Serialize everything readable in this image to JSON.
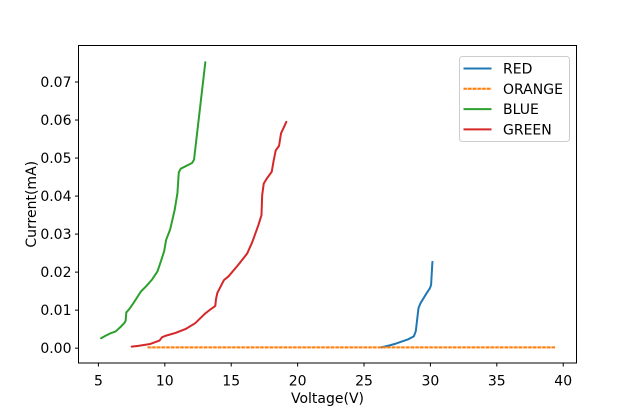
{
  "chart_data": {
    "type": "line",
    "title": "",
    "xlabel": "Voltage(V)",
    "ylabel": "Current(mA)",
    "xlim": [
      3.5,
      41.0
    ],
    "ylim": [
      -0.0039,
      0.0796
    ],
    "x_ticks": [
      5,
      10,
      15,
      20,
      25,
      30,
      35,
      40
    ],
    "x_tick_labels": [
      "5",
      "10",
      "15",
      "20",
      "25",
      "30",
      "35",
      "40"
    ],
    "y_ticks": [
      0.0,
      0.01,
      0.02,
      0.03,
      0.04,
      0.05,
      0.06,
      0.07
    ],
    "y_tick_labels": [
      "0.00",
      "0.01",
      "0.02",
      "0.03",
      "0.04",
      "0.05",
      "0.06",
      "0.07"
    ],
    "grid": false,
    "legend": {
      "position": "upper right",
      "entries": [
        "RED",
        "ORANGE",
        "BLUE",
        "GREEN"
      ]
    },
    "series": [
      {
        "name": "RED",
        "color": "#1f77b4",
        "linestyle": "solid",
        "points": [
          [
            26.3,
            0.0002
          ],
          [
            26.9,
            0.0007
          ],
          [
            27.4,
            0.0012
          ],
          [
            28.3,
            0.0023
          ],
          [
            28.75,
            0.0031
          ],
          [
            28.9,
            0.0045
          ],
          [
            29.1,
            0.0105
          ],
          [
            29.25,
            0.0118
          ],
          [
            29.7,
            0.0144
          ],
          [
            29.95,
            0.0157
          ],
          [
            30.05,
            0.0166
          ],
          [
            30.15,
            0.0227
          ]
        ]
      },
      {
        "name": "ORANGE",
        "color": "#ff7f0e",
        "linestyle": "dotted",
        "points": [
          [
            8.7,
            0.0002
          ],
          [
            39.4,
            0.0002
          ]
        ]
      },
      {
        "name": "BLUE",
        "color": "#2ca02c",
        "linestyle": "solid",
        "points": [
          [
            5.2,
            0.0026
          ],
          [
            5.5,
            0.0032
          ],
          [
            5.9,
            0.0039
          ],
          [
            6.3,
            0.0044
          ],
          [
            6.7,
            0.0057
          ],
          [
            6.95,
            0.0066
          ],
          [
            7.05,
            0.0072
          ],
          [
            7.1,
            0.0094
          ],
          [
            7.35,
            0.0104
          ],
          [
            7.7,
            0.0122
          ],
          [
            8.2,
            0.0149
          ],
          [
            8.6,
            0.0163
          ],
          [
            9.05,
            0.0181
          ],
          [
            9.45,
            0.0202
          ],
          [
            9.7,
            0.0228
          ],
          [
            9.95,
            0.0255
          ],
          [
            10.1,
            0.0285
          ],
          [
            10.4,
            0.0312
          ],
          [
            10.75,
            0.0365
          ],
          [
            10.95,
            0.0408
          ],
          [
            11.05,
            0.0462
          ],
          [
            11.2,
            0.0472
          ],
          [
            12.05,
            0.0487
          ],
          [
            12.2,
            0.0496
          ],
          [
            13.05,
            0.0752
          ]
        ]
      },
      {
        "name": "GREEN",
        "color": "#d62728",
        "linestyle": "solid",
        "points": [
          [
            7.5,
            0.0004
          ],
          [
            8.0,
            0.0006
          ],
          [
            8.9,
            0.0011
          ],
          [
            9.6,
            0.002
          ],
          [
            9.8,
            0.0029
          ],
          [
            10.1,
            0.0033
          ],
          [
            10.8,
            0.004
          ],
          [
            11.6,
            0.0051
          ],
          [
            12.3,
            0.0066
          ],
          [
            13.0,
            0.009
          ],
          [
            13.4,
            0.0101
          ],
          [
            13.8,
            0.0111
          ],
          [
            13.85,
            0.0128
          ],
          [
            13.95,
            0.0145
          ],
          [
            14.2,
            0.0162
          ],
          [
            14.45,
            0.0179
          ],
          [
            14.8,
            0.0189
          ],
          [
            15.55,
            0.022
          ],
          [
            16.2,
            0.0249
          ],
          [
            16.55,
            0.0276
          ],
          [
            16.7,
            0.029
          ],
          [
            17.05,
            0.0324
          ],
          [
            17.28,
            0.035
          ],
          [
            17.33,
            0.0402
          ],
          [
            17.45,
            0.0433
          ],
          [
            17.7,
            0.0447
          ],
          [
            18.05,
            0.0464
          ],
          [
            18.2,
            0.0494
          ],
          [
            18.35,
            0.052
          ],
          [
            18.6,
            0.0532
          ],
          [
            18.75,
            0.0565
          ],
          [
            19.15,
            0.0595
          ]
        ]
      }
    ]
  }
}
